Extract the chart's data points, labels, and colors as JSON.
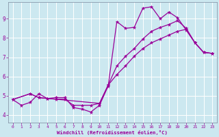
{
  "title": "",
  "xlabel": "Windchill (Refroidissement éolien,°C)",
  "bg_color": "#cce8f0",
  "grid_color": "#ffffff",
  "line_color": "#990099",
  "xlim": [
    -0.5,
    23.5
  ],
  "ylim": [
    3.6,
    9.85
  ],
  "xticks": [
    0,
    1,
    2,
    3,
    4,
    5,
    6,
    7,
    8,
    9,
    10,
    11,
    12,
    13,
    14,
    15,
    16,
    17,
    18,
    19,
    20,
    21,
    22,
    23
  ],
  "yticks": [
    4,
    5,
    6,
    7,
    8,
    9
  ],
  "s1x": [
    0,
    1,
    2,
    3,
    4,
    5,
    6,
    7,
    8,
    9,
    10,
    11,
    12,
    13,
    14,
    15,
    16,
    17,
    18,
    19,
    20,
    21,
    22,
    23
  ],
  "s1y": [
    4.8,
    4.5,
    4.65,
    5.1,
    4.85,
    4.82,
    4.82,
    4.5,
    4.5,
    4.5,
    4.6,
    5.55,
    6.1,
    6.55,
    7.05,
    7.45,
    7.75,
    7.95,
    8.15,
    8.35,
    8.45,
    7.75,
    7.25,
    7.2
  ],
  "s2x": [
    0,
    2,
    3,
    4,
    5,
    6,
    7,
    8,
    9,
    10,
    11,
    12,
    13,
    14,
    15,
    16,
    17,
    18,
    19,
    20,
    21,
    22,
    23
  ],
  "s2y": [
    4.8,
    5.1,
    4.9,
    4.85,
    4.9,
    4.9,
    4.38,
    4.3,
    4.15,
    4.5,
    5.5,
    8.85,
    8.5,
    8.55,
    9.55,
    9.62,
    9.0,
    9.35,
    9.05,
    8.4,
    7.75,
    7.25,
    7.2
  ],
  "s3x": [
    0,
    2,
    3,
    10,
    11,
    12,
    13,
    14,
    15,
    16,
    17,
    18,
    19,
    20,
    21,
    22,
    23
  ],
  "s3y": [
    4.8,
    5.1,
    4.9,
    4.6,
    5.55,
    6.55,
    7.05,
    7.45,
    7.95,
    8.35,
    8.55,
    8.7,
    8.9,
    8.5,
    7.75,
    7.25,
    7.2
  ]
}
